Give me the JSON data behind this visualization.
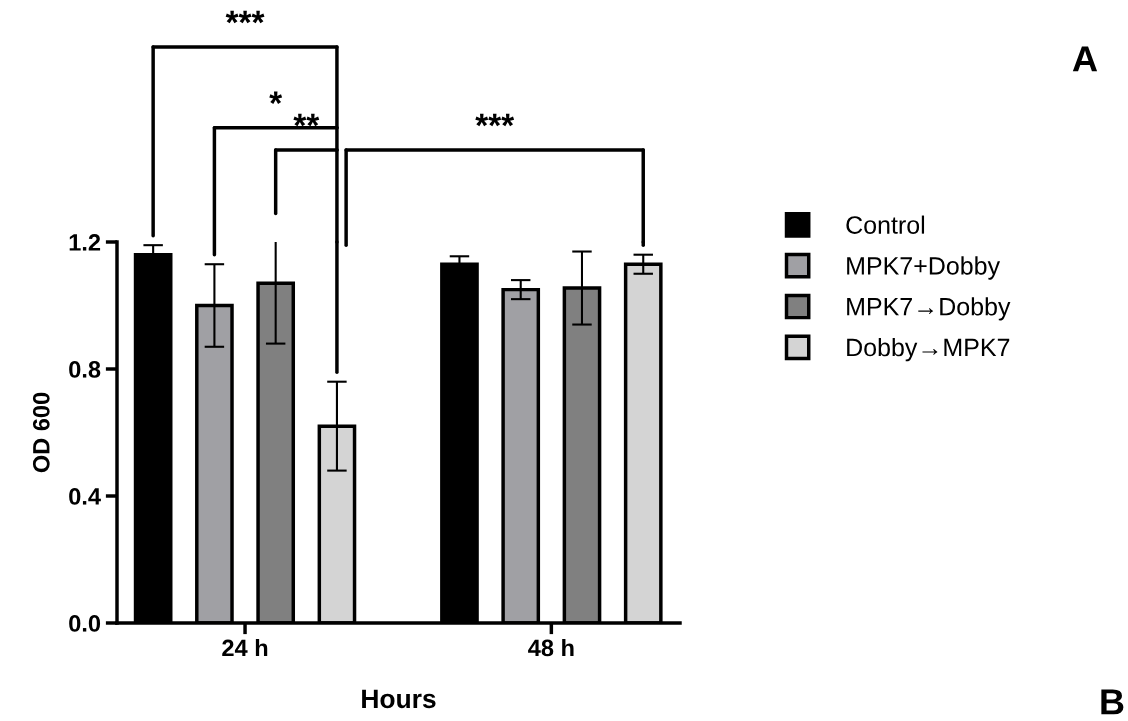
{
  "chart_data": {
    "type": "bar",
    "xlabel": "Hours",
    "ylabel": "OD 600",
    "categories": [
      "24 h",
      "48 h"
    ],
    "series": [
      {
        "name": "Control",
        "color": "#000000",
        "values": [
          1.16,
          1.13
        ],
        "errors": [
          0.03,
          0.025
        ]
      },
      {
        "name": "MPK7+Dobby",
        "color": "#a0a0a4",
        "values": [
          1.0,
          1.05
        ],
        "errors": [
          0.13,
          0.03
        ]
      },
      {
        "name": "MPK7→Dobby",
        "color": "#808080",
        "values": [
          1.07,
          1.055
        ],
        "errors": [
          0.19,
          0.115
        ]
      },
      {
        "name": "Dobby→MPK7",
        "color": "#d4d4d4",
        "values": [
          0.62,
          1.13
        ],
        "errors": [
          0.14,
          0.03
        ]
      }
    ],
    "ylim": [
      0,
      1.2
    ],
    "yticks": [
      {
        "value": 0,
        "label": "0.0"
      },
      0.4,
      0.8,
      1.2
    ],
    "grid": false,
    "legend": "right",
    "annotations": [
      "***",
      "*",
      "**",
      "***",
      "A",
      "B"
    ]
  }
}
